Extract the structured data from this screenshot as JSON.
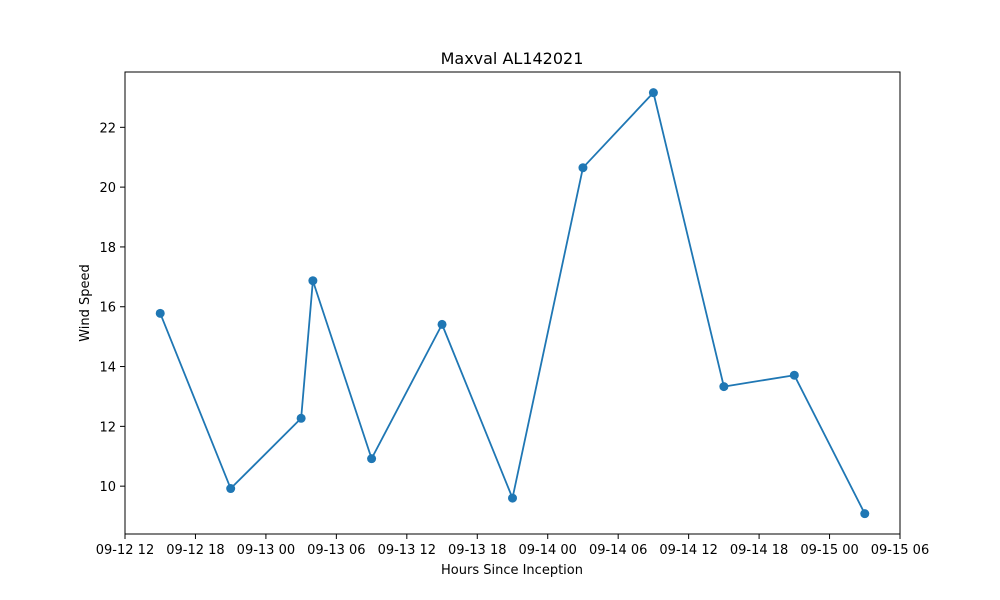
{
  "chart_data": {
    "type": "line",
    "title": "Maxval AL142021",
    "xlabel": "Hours Since Inception",
    "ylabel": "Wind Speed",
    "x_ticks": [
      {
        "t": "2021-09-12T12:00",
        "label": "09-12 12"
      },
      {
        "t": "2021-09-12T18:00",
        "label": "09-12 18"
      },
      {
        "t": "2021-09-13T00:00",
        "label": "09-13 00"
      },
      {
        "t": "2021-09-13T06:00",
        "label": "09-13 06"
      },
      {
        "t": "2021-09-13T12:00",
        "label": "09-13 12"
      },
      {
        "t": "2021-09-13T18:00",
        "label": "09-13 18"
      },
      {
        "t": "2021-09-14T00:00",
        "label": "09-14 00"
      },
      {
        "t": "2021-09-14T06:00",
        "label": "09-14 06"
      },
      {
        "t": "2021-09-14T12:00",
        "label": "09-14 12"
      },
      {
        "t": "2021-09-14T18:00",
        "label": "09-14 18"
      },
      {
        "t": "2021-09-15T00:00",
        "label": "09-15 00"
      },
      {
        "t": "2021-09-15T06:00",
        "label": "09-15 06"
      }
    ],
    "y_ticks": [
      10,
      12,
      14,
      16,
      18,
      20,
      22
    ],
    "xlim": [
      "2021-09-12T12:00",
      "2021-09-15T06:00"
    ],
    "ylim": [
      8.4,
      23.85
    ],
    "grid": false,
    "color": "#1f77b4",
    "series": [
      {
        "x": [
          "2021-09-12T15:00",
          "2021-09-12T21:00",
          "2021-09-13T03:00",
          "2021-09-13T04:00",
          "2021-09-13T09:00",
          "2021-09-13T15:00",
          "2021-09-13T21:00",
          "2021-09-14T03:00",
          "2021-09-14T09:00",
          "2021-09-14T15:00",
          "2021-09-14T21:00",
          "2021-09-15T03:00"
        ],
        "y": [
          15.78,
          9.92,
          12.27,
          16.87,
          10.92,
          15.41,
          9.6,
          20.65,
          23.16,
          13.33,
          13.71,
          9.08
        ]
      }
    ]
  }
}
